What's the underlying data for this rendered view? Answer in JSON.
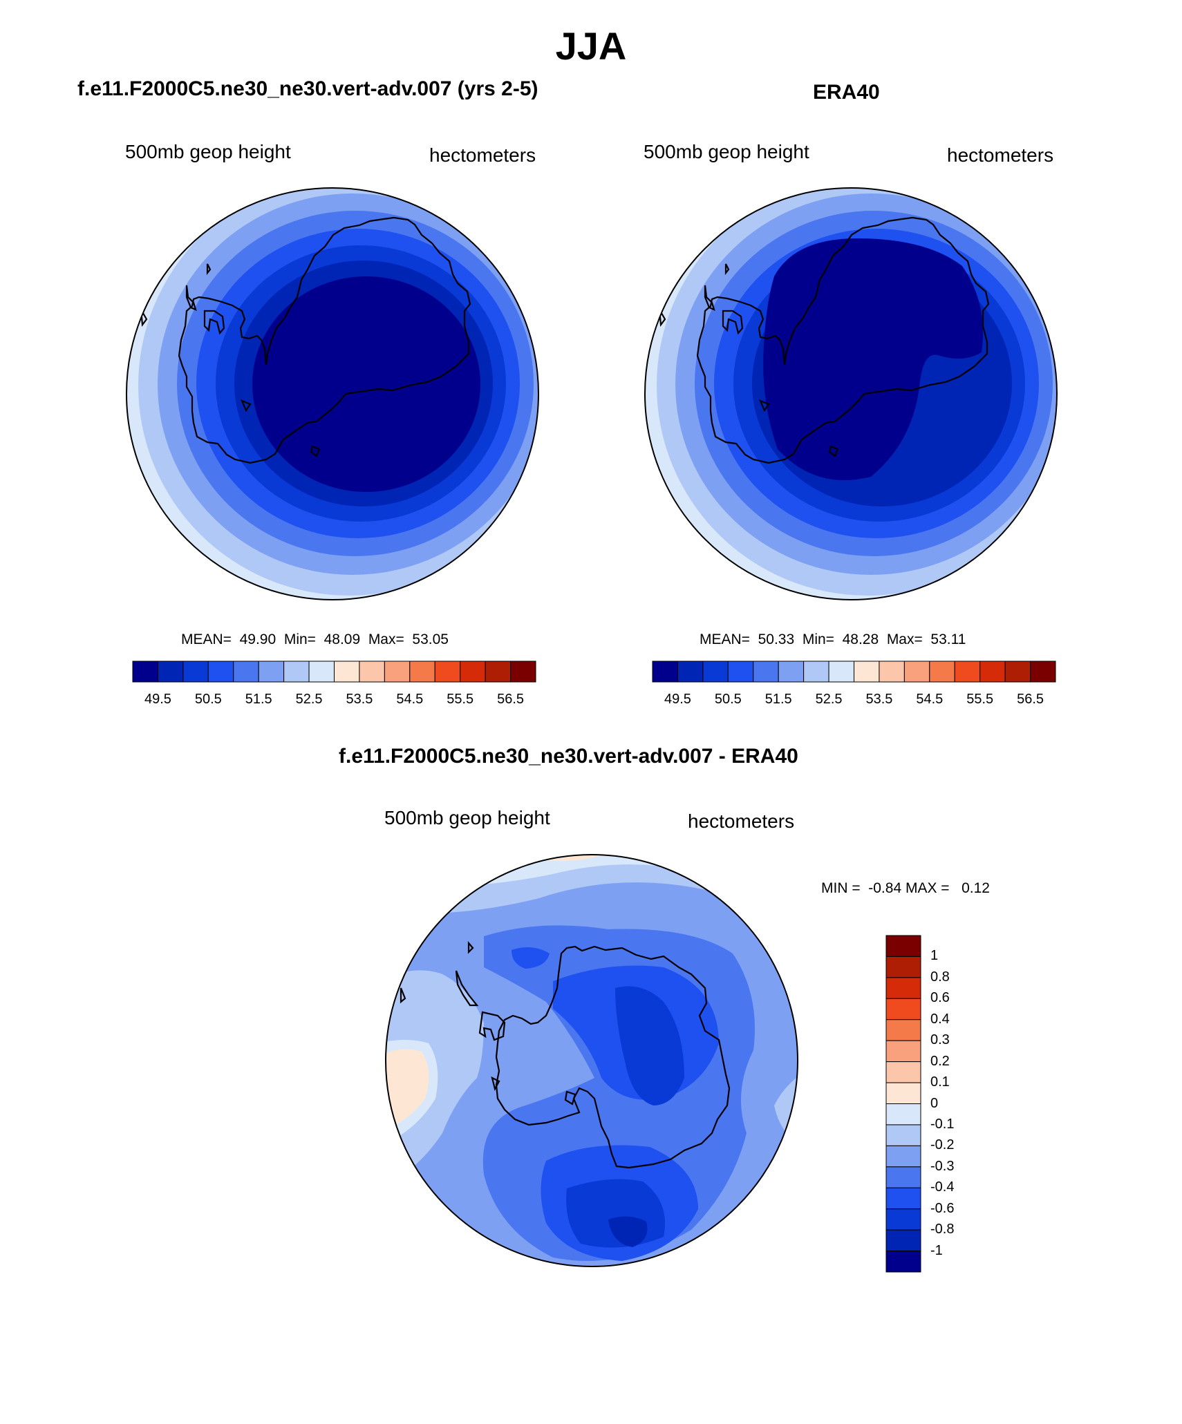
{
  "figure": {
    "season": "JJA"
  },
  "panels": [
    {
      "title": "f.e11.F2000C5.ne30_ne30.vert-adv.007 (yrs 2-5)",
      "variable": "500mb geop height",
      "units": "hectometers",
      "stats": "MEAN=  49.90  Min=  48.09  Max=  53.05",
      "projection": "south-polar-stereographic"
    },
    {
      "title": "ERA40",
      "variable": "500mb geop height",
      "units": "hectometers",
      "stats": "MEAN=  50.33  Min=  48.28  Max=  53.11",
      "projection": "south-polar-stereographic"
    },
    {
      "title": "f.e11.F2000C5.ne30_ne30.vert-adv.007 - ERA40",
      "variable": "500mb geop height",
      "units": "hectometers",
      "stats": "MIN =  -0.84 MAX =   0.12",
      "projection": "south-polar-stereographic"
    }
  ],
  "colorbar_absolute": {
    "orientation": "horizontal",
    "tick_labels": [
      "49.5",
      "50.5",
      "51.5",
      "52.5",
      "53.5",
      "54.5",
      "55.5",
      "56.5"
    ],
    "colors": [
      "#00008c",
      "#0024b4",
      "#0a3ad6",
      "#1f50f0",
      "#4a76f0",
      "#7da0f2",
      "#b0c8f6",
      "#d8e8fa",
      "#fde6d4",
      "#fcc6aa",
      "#f9a07c",
      "#f57a4a",
      "#ef4b1e",
      "#d62b08",
      "#ad1e04",
      "#7a0000"
    ]
  },
  "colorbar_difference": {
    "orientation": "vertical",
    "tick_labels": [
      "1",
      "0.8",
      "0.6",
      "0.4",
      "0.3",
      "0.2",
      "0.1",
      "0",
      "-0.1",
      "-0.2",
      "-0.3",
      "-0.4",
      "-0.6",
      "-0.8",
      "-1"
    ],
    "colors": [
      "#7a0000",
      "#ad1e04",
      "#d62b08",
      "#ef4b1e",
      "#f57a4a",
      "#f9a07c",
      "#fcc6aa",
      "#fde6d4",
      "#d8e8fa",
      "#b0c8f6",
      "#7da0f2",
      "#4a76f0",
      "#1f50f0",
      "#0a3ad6",
      "#0024b4",
      "#00008c"
    ]
  }
}
